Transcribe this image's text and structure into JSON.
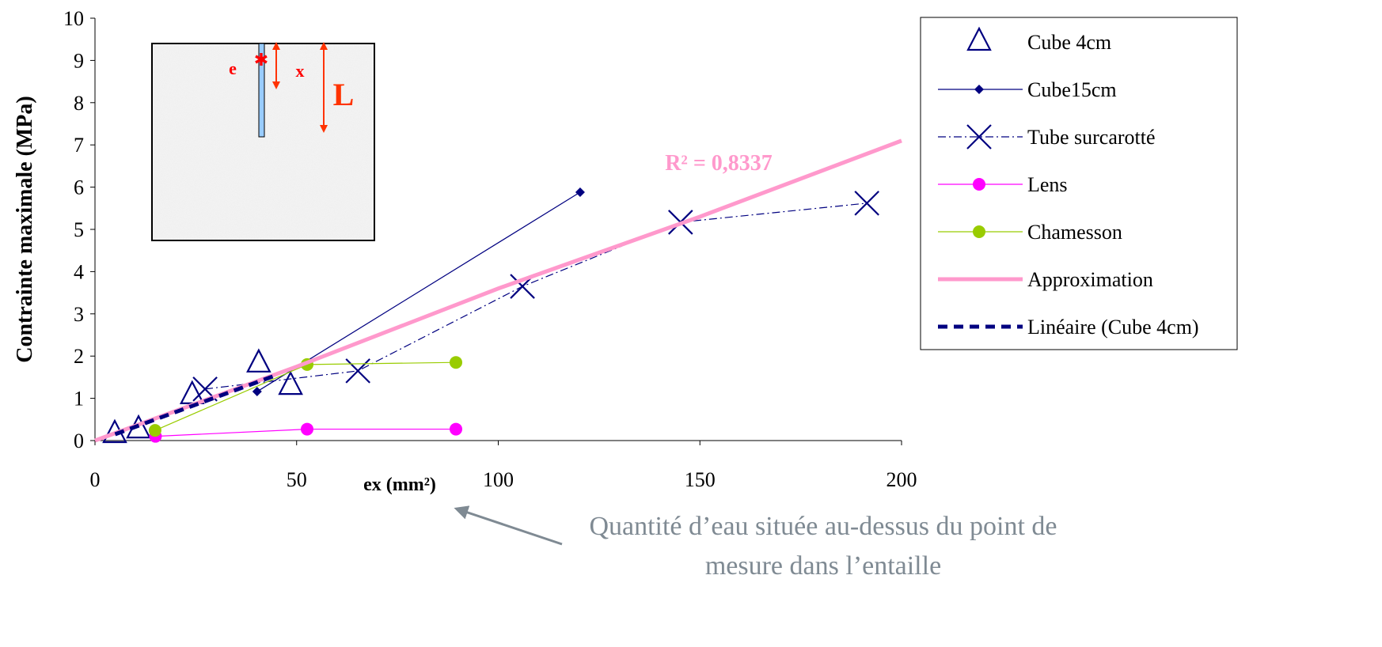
{
  "chart_data": {
    "type": "scatter",
    "xlabel": "ex (mm²)",
    "ylabel": "Contrainte maximale (MPa)",
    "xlim": [
      0,
      200
    ],
    "xticks": [
      0,
      50,
      100,
      150,
      200
    ],
    "ylim": [
      0,
      10
    ],
    "yticks": [
      0,
      1,
      2,
      3,
      4,
      5,
      6,
      7,
      8,
      9,
      10
    ],
    "series": [
      {
        "name": "Cube 4cm",
        "color": "#000080",
        "marker": "triangle",
        "line": "none",
        "x": [
          4.9,
          10.8,
          24.1,
          40.6,
          48.5
        ],
        "values": [
          0.15,
          0.26,
          1.07,
          1.82,
          1.29
        ]
      },
      {
        "name": "Cube15cm",
        "color": "#000080",
        "marker": "diamond",
        "line": "solid",
        "x": [
          40.2,
          120.3
        ],
        "values": [
          1.16,
          5.88
        ]
      },
      {
        "name": "Tube surcarotté",
        "color": "#000080",
        "marker": "x",
        "line": "dashdot",
        "x": [
          27.3,
          65.2,
          106,
          145.2,
          191.4
        ],
        "values": [
          1.22,
          1.65,
          3.65,
          5.17,
          5.62
        ]
      },
      {
        "name": "Lens",
        "color": "#ff00ff",
        "marker": "circle",
        "line": "solid",
        "x": [
          15,
          52.6,
          89.5
        ],
        "values": [
          0.1,
          0.27,
          0.27
        ]
      },
      {
        "name": "Chamesson",
        "color": "#99cc00",
        "marker": "circle",
        "line": "solid",
        "x": [
          14.9,
          52.6,
          89.5
        ],
        "values": [
          0.24,
          1.8,
          1.85
        ]
      },
      {
        "name": "Approximation",
        "color": "#ff99cc",
        "marker": "none",
        "line": "thick",
        "x": [
          0,
          50,
          100,
          150,
          200
        ],
        "values": [
          0,
          1.75,
          3.6,
          5.3,
          7.1
        ]
      },
      {
        "name": "Linéaire (Cube 4cm)",
        "color": "#000080",
        "marker": "none",
        "line": "thickdash",
        "x": [
          5,
          45
        ],
        "values": [
          0.15,
          1.55
        ]
      }
    ],
    "annotations": [
      "R² = 0,8337"
    ],
    "inset_labels": [
      "e",
      "x",
      "L"
    ],
    "caption": [
      "Quantité d’eau située au-dessus du point de",
      "mesure dans l’entaille"
    ]
  }
}
